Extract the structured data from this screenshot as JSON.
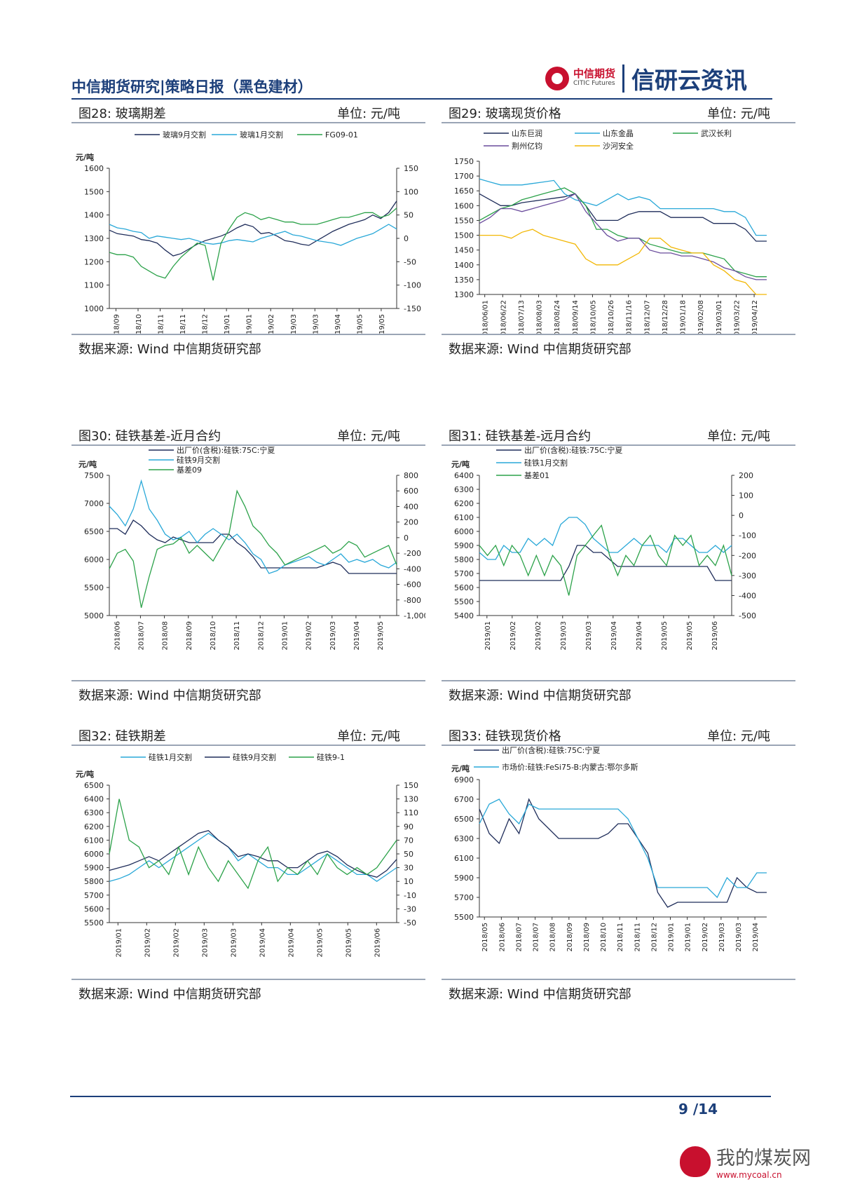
{
  "header": {
    "title": "中信期货研究|策略日报（黑色建材）",
    "logo_cn": "中信期货",
    "logo_en": "CITIC Futures",
    "logo_right": "信研云资讯"
  },
  "footer": {
    "page": "9 /14",
    "watermark_cn": "我的煤炭网",
    "watermark_url": "www.mycoal.cn"
  },
  "panels": [
    {
      "title": "图28: 玻璃期差",
      "unit": "单位: 元/吨",
      "source": "数据来源: Wind 中信期货研究部"
    },
    {
      "title": "图29: 玻璃现货价格",
      "unit": "单位: 元/吨",
      "source": "数据来源: Wind 中信期货研究部"
    },
    {
      "title": "图30: 硅铁基差-近月合约",
      "unit": "单位: 元/吨",
      "source": "数据来源: Wind 中信期货研究部"
    },
    {
      "title": "图31: 硅铁基差-远月合约",
      "unit": "单位: 元/吨",
      "source": "数据来源: Wind 中信期货研究部"
    },
    {
      "title": "图32: 硅铁期差",
      "unit": "单位: 元/吨",
      "source": "数据来源: Wind 中信期货研究部"
    },
    {
      "title": "图33: 硅铁现货价格",
      "unit": "单位: 元/吨",
      "source": "数据来源: Wind 中信期货研究部"
    }
  ],
  "chart_data": [
    {
      "type": "line",
      "ylabel": "元/吨",
      "ylim": [
        1000,
        1600
      ],
      "y_ticks": [
        "1600",
        "1500",
        "1400",
        "1300",
        "1200",
        "1100",
        "1000"
      ],
      "y2lim": [
        -150,
        150
      ],
      "y2_ticks": [
        "150",
        "100",
        "50",
        "0",
        "-50",
        "-100",
        "-150"
      ],
      "x_ticks": [
        "2018/09",
        "2018/10",
        "2018/11",
        "2018/11",
        "2018/12",
        "2019/01",
        "2019/01",
        "2019/02",
        "2019/03",
        "2019/03",
        "2019/04",
        "2019/05",
        "2019/05"
      ],
      "legend": "top",
      "series": [
        {
          "name": "玻璃9月交割",
          "color": "#1f2d5a",
          "axis": "left",
          "values": [
            1335,
            1320,
            1315,
            1310,
            1295,
            1290,
            1280,
            1250,
            1225,
            1235,
            1255,
            1275,
            1290,
            1300,
            1310,
            1325,
            1345,
            1360,
            1350,
            1320,
            1325,
            1310,
            1290,
            1285,
            1275,
            1270,
            1290,
            1310,
            1330,
            1345,
            1360,
            1370,
            1380,
            1400,
            1385,
            1410,
            1460
          ]
        },
        {
          "name": "玻璃1月交割",
          "color": "#29a8d8",
          "axis": "left",
          "values": [
            1360,
            1345,
            1340,
            1330,
            1325,
            1300,
            1310,
            1305,
            1300,
            1295,
            1300,
            1290,
            1280,
            1275,
            1280,
            1290,
            1295,
            1290,
            1285,
            1300,
            1310,
            1320,
            1330,
            1315,
            1310,
            1300,
            1290,
            1285,
            1280,
            1270,
            1285,
            1300,
            1310,
            1320,
            1340,
            1360,
            1340
          ]
        },
        {
          "name": "FG09-01",
          "color": "#2ca24a",
          "axis": "right",
          "values": [
            -30,
            -35,
            -35,
            -40,
            -60,
            -70,
            -80,
            -85,
            -60,
            -40,
            -25,
            -10,
            -15,
            -90,
            -10,
            20,
            45,
            55,
            50,
            40,
            45,
            40,
            35,
            35,
            30,
            30,
            30,
            35,
            40,
            45,
            45,
            50,
            55,
            55,
            45,
            50,
            65
          ]
        }
      ]
    },
    {
      "type": "line",
      "ylim": [
        1300,
        1750
      ],
      "y_ticks": [
        "1750",
        "1700",
        "1650",
        "1600",
        "1550",
        "1500",
        "1450",
        "1400",
        "1350",
        "1300"
      ],
      "x_ticks": [
        "2018/06/01",
        "2018/06/22",
        "2018/07/13",
        "2018/08/03",
        "2018/08/24",
        "2018/09/14",
        "2018/10/05",
        "2018/10/26",
        "2018/11/16",
        "2018/12/07",
        "2018/12/28",
        "2019/01/18",
        "2019/02/08",
        "2019/03/01",
        "2019/03/22",
        "2019/04/12"
      ],
      "legend": "top",
      "series": [
        {
          "name": "山东巨润",
          "color": "#1f2d5a",
          "values": [
            1640,
            1620,
            1600,
            1600,
            1610,
            1615,
            1620,
            1625,
            1630,
            1640,
            1600,
            1550,
            1550,
            1550,
            1570,
            1580,
            1580,
            1580,
            1560,
            1560,
            1560,
            1560,
            1540,
            1540,
            1540,
            1520,
            1480,
            1480
          ]
        },
        {
          "name": "山东金晶",
          "color": "#29a8d8",
          "values": [
            1690,
            1680,
            1670,
            1670,
            1670,
            1675,
            1680,
            1685,
            1640,
            1620,
            1610,
            1600,
            1620,
            1640,
            1620,
            1630,
            1620,
            1590,
            1590,
            1590,
            1590,
            1590,
            1590,
            1580,
            1580,
            1560,
            1500,
            1500
          ]
        },
        {
          "name": "武汉长利",
          "color": "#2ca24a",
          "values": [
            1550,
            1570,
            1590,
            1600,
            1620,
            1630,
            1640,
            1650,
            1660,
            1640,
            1600,
            1520,
            1520,
            1500,
            1490,
            1490,
            1470,
            1460,
            1450,
            1440,
            1440,
            1440,
            1430,
            1420,
            1380,
            1370,
            1360,
            1360
          ]
        },
        {
          "name": "荆州亿钧",
          "color": "#6a4c9c",
          "values": [
            1540,
            1560,
            1590,
            1590,
            1580,
            1590,
            1600,
            1610,
            1620,
            1640,
            1580,
            1540,
            1500,
            1480,
            1490,
            1490,
            1450,
            1440,
            1440,
            1430,
            1430,
            1420,
            1410,
            1390,
            1380,
            1360,
            1350,
            1350
          ]
        },
        {
          "name": "沙河安全",
          "color": "#f2b705",
          "values": [
            1500,
            1500,
            1500,
            1490,
            1510,
            1520,
            1500,
            1490,
            1480,
            1470,
            1420,
            1400,
            1400,
            1400,
            1420,
            1440,
            1490,
            1490,
            1460,
            1450,
            1440,
            1440,
            1400,
            1380,
            1350,
            1340,
            1300,
            1300
          ]
        }
      ]
    },
    {
      "type": "line",
      "ylabel": "元/吨",
      "ylim": [
        5000,
        7500
      ],
      "y_ticks": [
        "7500",
        "7000",
        "6500",
        "6000",
        "5500",
        "5000"
      ],
      "y2lim": [
        -1000,
        800
      ],
      "y2_ticks": [
        "800",
        "600",
        "400",
        "200",
        "0",
        "-200",
        "-400",
        "-600",
        "-800",
        "-1,000"
      ],
      "x_ticks": [
        "2018/06",
        "2018/07",
        "2018/08",
        "2018/09",
        "2018/10",
        "2018/11",
        "2018/12",
        "2019/01",
        "2019/02",
        "2019/03",
        "2019/04",
        "2019/05"
      ],
      "legend": "top-left",
      "series": [
        {
          "name": "出厂价(含税):硅铁:75C:宁夏",
          "color": "#1f2d5a",
          "axis": "left",
          "values": [
            6550,
            6550,
            6450,
            6700,
            6600,
            6450,
            6350,
            6300,
            6400,
            6350,
            6300,
            6300,
            6300,
            6300,
            6450,
            6450,
            6300,
            6200,
            6050,
            5850,
            5850,
            5850,
            5850,
            5850,
            5850,
            5850,
            5850,
            5900,
            5950,
            5900,
            5750,
            5750,
            5750,
            5750,
            5750,
            5750,
            5750
          ]
        },
        {
          "name": "硅铁9月交割",
          "color": "#29a8d8",
          "axis": "left",
          "values": [
            6950,
            6800,
            6600,
            6900,
            7400,
            6900,
            6700,
            6450,
            6350,
            6400,
            6500,
            6300,
            6450,
            6550,
            6450,
            6350,
            6450,
            6300,
            6100,
            6000,
            5750,
            5800,
            5900,
            5950,
            6000,
            6050,
            5950,
            5900,
            6000,
            6100,
            5950,
            6000,
            5950,
            6000,
            5900,
            5850,
            5950
          ]
        },
        {
          "name": "基差09",
          "color": "#2ca24a",
          "axis": "right",
          "values": [
            -400,
            -200,
            -150,
            -300,
            -900,
            -500,
            -150,
            -100,
            -80,
            0,
            -200,
            -100,
            -200,
            -300,
            -120,
            50,
            600,
            400,
            150,
            50,
            -100,
            -200,
            -350,
            -300,
            -250,
            -200,
            -150,
            -100,
            -200,
            -150,
            -50,
            -100,
            -250,
            -200,
            -150,
            -100,
            -350
          ]
        }
      ]
    },
    {
      "type": "line",
      "ylabel": "元/吨",
      "ylim": [
        5400,
        6400
      ],
      "y_ticks": [
        "6400",
        "6300",
        "6200",
        "6100",
        "6000",
        "5900",
        "5800",
        "5700",
        "5600",
        "5500",
        "5400"
      ],
      "y2lim": [
        -500,
        200
      ],
      "y2_ticks": [
        "200",
        "100",
        "0",
        "-100",
        "-200",
        "-300",
        "-400",
        "-500"
      ],
      "x_ticks": [
        "2019/01",
        "2019/02",
        "2019/02",
        "2019/03",
        "2019/03",
        "2019/04",
        "2019/04",
        "2019/05",
        "2019/05",
        "2019/06"
      ],
      "legend": "top-left",
      "series": [
        {
          "name": "出厂价(含税):硅铁:75C:宁夏",
          "color": "#1f2d5a",
          "axis": "left",
          "values": [
            5650,
            5650,
            5650,
            5650,
            5650,
            5650,
            5650,
            5650,
            5650,
            5650,
            5650,
            5750,
            5900,
            5900,
            5850,
            5850,
            5800,
            5750,
            5750,
            5750,
            5750,
            5750,
            5750,
            5750,
            5750,
            5750,
            5750,
            5750,
            5750,
            5650,
            5650,
            5650
          ]
        },
        {
          "name": "硅铁1月交割",
          "color": "#29a8d8",
          "axis": "left",
          "values": [
            5850,
            5800,
            5800,
            5900,
            5850,
            5850,
            5950,
            5900,
            5950,
            5900,
            6050,
            6100,
            6100,
            6050,
            5950,
            5900,
            5850,
            5850,
            5900,
            5950,
            5900,
            5900,
            5900,
            5850,
            5950,
            5950,
            5900,
            5850,
            5850,
            5900,
            5850,
            5900
          ]
        },
        {
          "name": "基差01",
          "color": "#2ca24a",
          "axis": "right",
          "values": [
            -150,
            -200,
            -150,
            -250,
            -150,
            -200,
            -300,
            -200,
            -300,
            -200,
            -250,
            -400,
            -200,
            -150,
            -100,
            -50,
            -200,
            -300,
            -200,
            -250,
            -150,
            -100,
            -200,
            -250,
            -100,
            -150,
            -100,
            -250,
            -200,
            -250,
            -150,
            -300
          ]
        }
      ]
    },
    {
      "type": "line",
      "ylabel": "元/吨",
      "ylim": [
        5500,
        6500
      ],
      "y_ticks": [
        "6500",
        "6400",
        "6300",
        "6200",
        "6100",
        "6000",
        "5900",
        "5800",
        "5700",
        "5600",
        "5500"
      ],
      "y2lim": [
        -50,
        150
      ],
      "y2_ticks": [
        "150",
        "130",
        "110",
        "90",
        "70",
        "50",
        "30",
        "10",
        "-10",
        "-30",
        "-50"
      ],
      "x_ticks": [
        "2019/01",
        "2019/02",
        "2019/02",
        "2019/03",
        "2019/03",
        "2019/04",
        "2019/04",
        "2019/05",
        "2019/05",
        "2019/06"
      ],
      "legend": "top",
      "series": [
        {
          "name": "硅铁1月交割",
          "color": "#29a8d8",
          "axis": "left",
          "values": [
            5800,
            5820,
            5850,
            5900,
            5950,
            5900,
            5950,
            6000,
            6050,
            6100,
            6150,
            6100,
            6050,
            5950,
            6000,
            5950,
            5900,
            5900,
            5850,
            5850,
            5900,
            5950,
            6000,
            5950,
            5900,
            5850,
            5850,
            5800,
            5850,
            5900
          ]
        },
        {
          "name": "硅铁9月交割",
          "color": "#1f2d5a",
          "axis": "left",
          "values": [
            5880,
            5900,
            5920,
            5950,
            5980,
            5950,
            6000,
            6050,
            6100,
            6150,
            6170,
            6100,
            6050,
            5980,
            6000,
            5980,
            5950,
            5950,
            5900,
            5900,
            5950,
            6000,
            6020,
            5980,
            5920,
            5880,
            5850,
            5830,
            5880,
            5960
          ]
        },
        {
          "name": "硅铁9-1",
          "color": "#2ca24a",
          "axis": "right",
          "values": [
            50,
            130,
            70,
            60,
            30,
            40,
            20,
            60,
            20,
            60,
            30,
            10,
            40,
            20,
            0,
            40,
            60,
            10,
            30,
            20,
            40,
            20,
            50,
            30,
            20,
            30,
            20,
            30,
            50,
            70
          ]
        }
      ]
    },
    {
      "type": "line",
      "ylabel": "元/吨",
      "ylim": [
        5500,
        6900
      ],
      "y_ticks": [
        "6900",
        "6700",
        "6500",
        "6300",
        "6100",
        "5900",
        "5700",
        "5500"
      ],
      "x_ticks": [
        "2018/05",
        "2018/06",
        "2018/07",
        "2018/07",
        "2018/08",
        "2018/09",
        "2018/09",
        "2018/10",
        "2018/11",
        "2018/11",
        "2018/12",
        "2019/01",
        "2019/01",
        "2019/02",
        "2019/03",
        "2019/03",
        "2019/04"
      ],
      "legend": "top-left",
      "series": [
        {
          "name": "出厂价(含税):硅铁:75C:宁夏",
          "color": "#1f2d5a",
          "values": [
            6600,
            6350,
            6250,
            6500,
            6350,
            6700,
            6500,
            6400,
            6300,
            6300,
            6300,
            6300,
            6300,
            6350,
            6450,
            6450,
            6300,
            6150,
            5750,
            5600,
            5650,
            5650,
            5650,
            5650,
            5650,
            5650,
            5900,
            5800,
            5750,
            5750
          ]
        },
        {
          "name": "市场价:硅铁:FeSi75-B:内蒙古:鄂尔多斯",
          "color": "#29a8d8",
          "values": [
            6450,
            6650,
            6700,
            6550,
            6450,
            6650,
            6600,
            6600,
            6600,
            6600,
            6600,
            6600,
            6600,
            6600,
            6600,
            6500,
            6300,
            6100,
            5800,
            5800,
            5800,
            5800,
            5800,
            5800,
            5700,
            5900,
            5800,
            5800,
            5950,
            5950
          ]
        }
      ]
    }
  ]
}
